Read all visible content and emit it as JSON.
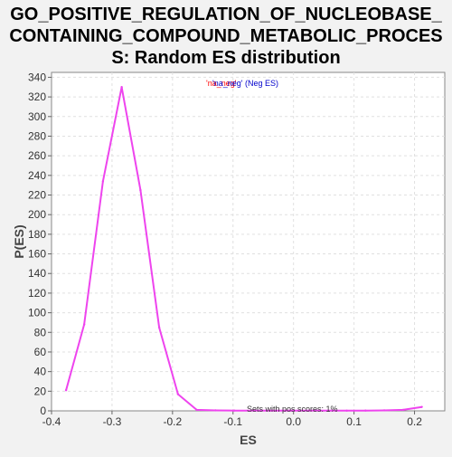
{
  "chart_data": {
    "type": "line",
    "title_lines": [
      "GO_POSITIVE_REGULATION_OF_NUCLEOBASE_",
      "CONTAINING_COMPOUND_METABOLIC_PROCES",
      "S: Random ES distribution"
    ],
    "xlabel": "ES",
    "ylabel": "P(ES)",
    "xlim": [
      -0.4,
      0.25
    ],
    "ylim": [
      0,
      345
    ],
    "xticks": [
      -0.4,
      -0.3,
      -0.2,
      -0.1,
      0.0,
      0.1,
      0.2
    ],
    "xtick_labels": [
      "-0.4",
      "-0.3",
      "-0.2",
      "-0.1",
      "0.0",
      "0.1",
      "0.2"
    ],
    "yticks": [
      0,
      20,
      40,
      60,
      80,
      100,
      120,
      140,
      160,
      180,
      200,
      220,
      240,
      260,
      280,
      300,
      320,
      340
    ],
    "grid": true,
    "legend": {
      "prefix": "'na_neg'",
      "label": "'na_neg' (Neg ES)",
      "placement": "top-center",
      "prefix_color": "#ff0000",
      "label_color": "#0000cc"
    },
    "annotation": "Sets with pos scores: 1%",
    "series": [
      {
        "color": "#ee44ee",
        "x": [
          -0.376,
          -0.346,
          -0.315,
          -0.284,
          -0.253,
          -0.222,
          -0.191,
          -0.16,
          -0.129,
          -0.098,
          -0.067,
          -0.036,
          -0.005,
          0.026,
          0.057,
          0.088,
          0.119,
          0.15,
          0.181,
          0.212
        ],
        "y": [
          21,
          88,
          234,
          330,
          225,
          85,
          17,
          1,
          0.5,
          0.3,
          0.3,
          0.2,
          0.2,
          0.2,
          0.2,
          0.2,
          0.3,
          0.5,
          1,
          4
        ]
      }
    ]
  }
}
